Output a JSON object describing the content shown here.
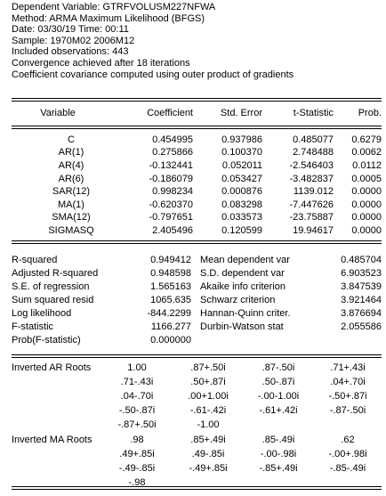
{
  "header": {
    "dependent": "Dependent Variable: GTRFVOLUSM227NFWA",
    "method": "Method: ARMA Maximum Likelihood (BFGS)",
    "date": "Date: 03/30/19   Time: 00:11",
    "sample": "Sample: 1970M02 2006M12",
    "observations": "Included observations: 443",
    "convergence": "Convergence achieved after 18 iterations",
    "covariance": "Coefficient covariance computed using outer product of gradients"
  },
  "columns": [
    "Variable",
    "Coefficient",
    "Std. Error",
    "t-Statistic",
    "Prob."
  ],
  "coefficients": [
    {
      "variable": "C",
      "coef": "0.454995",
      "se": "0.937986",
      "t": "0.485077",
      "prob": "0.6279"
    },
    {
      "variable": "AR(1)",
      "coef": "0.275866",
      "se": "0.100370",
      "t": "2.748488",
      "prob": "0.0062"
    },
    {
      "variable": "AR(4)",
      "coef": "-0.132441",
      "se": "0.052011",
      "t": "-2.546403",
      "prob": "0.0112"
    },
    {
      "variable": "AR(6)",
      "coef": "-0.186079",
      "se": "0.053427",
      "t": "-3.482837",
      "prob": "0.0005"
    },
    {
      "variable": "SAR(12)",
      "coef": "0.998234",
      "se": "0.000876",
      "t": "1139.012",
      "prob": "0.0000"
    },
    {
      "variable": "MA(1)",
      "coef": "-0.620370",
      "se": "0.083298",
      "t": "-7.447626",
      "prob": "0.0000"
    },
    {
      "variable": "SMA(12)",
      "coef": "-0.797651",
      "se": "0.033573",
      "t": "-23.75887",
      "prob": "0.0000"
    },
    {
      "variable": "SIGMASQ",
      "coef": "2.405496",
      "se": "0.120599",
      "t": "19.94617",
      "prob": "0.0000"
    }
  ],
  "stats": [
    {
      "l_label": "R-squared",
      "l_value": "0.949412",
      "r_label": "Mean dependent var",
      "r_value": "0.485704"
    },
    {
      "l_label": "Adjusted R-squared",
      "l_value": "0.948598",
      "r_label": "S.D. dependent var",
      "r_value": "6.903523"
    },
    {
      "l_label": "S.E. of regression",
      "l_value": "1.565163",
      "r_label": "Akaike info criterion",
      "r_value": "3.847539"
    },
    {
      "l_label": "Sum squared resid",
      "l_value": "1065.635",
      "r_label": "Schwarz criterion",
      "r_value": "3.921464"
    },
    {
      "l_label": "Log likelihood",
      "l_value": "-844.2299",
      "r_label": "Hannan-Quinn criter.",
      "r_value": "3.876694"
    },
    {
      "l_label": "F-statistic",
      "l_value": "1166.277",
      "r_label": "Durbin-Watson stat",
      "r_value": "2.055586"
    },
    {
      "l_label": "Prob(F-statistic)",
      "l_value": "0.000000",
      "r_label": "",
      "r_value": ""
    }
  ],
  "ar_roots": {
    "label": "Inverted AR Roots",
    "rows": [
      [
        " 1.00",
        ".87+.50i",
        ".87-.50i",
        ".71+.43i"
      ],
      [
        ".71-.43i",
        ".50+.87i",
        ".50-.87i",
        ".04+.70i"
      ],
      [
        ".04-.70i",
        ".00+1.00i",
        "-.00-1.00i",
        "-.50+.87i"
      ],
      [
        "-.50-.87i",
        "-.61-.42i",
        "-.61+.42i",
        "-.87-.50i"
      ],
      [
        "-.87+.50i",
        "-1.00",
        "",
        ""
      ]
    ]
  },
  "ma_roots": {
    "label": "Inverted MA Roots",
    "rows": [
      [
        " .98",
        ".85+.49i",
        ".85-.49i",
        ".62"
      ],
      [
        ".49+.85i",
        ".49-.85i",
        "-.00-.98i",
        "-.00+.98i"
      ],
      [
        "-.49-.85i",
        "-.49+.85i",
        "-.85+.49i",
        "-.85-.49i"
      ],
      [
        "-.98",
        "",
        "",
        ""
      ]
    ]
  }
}
